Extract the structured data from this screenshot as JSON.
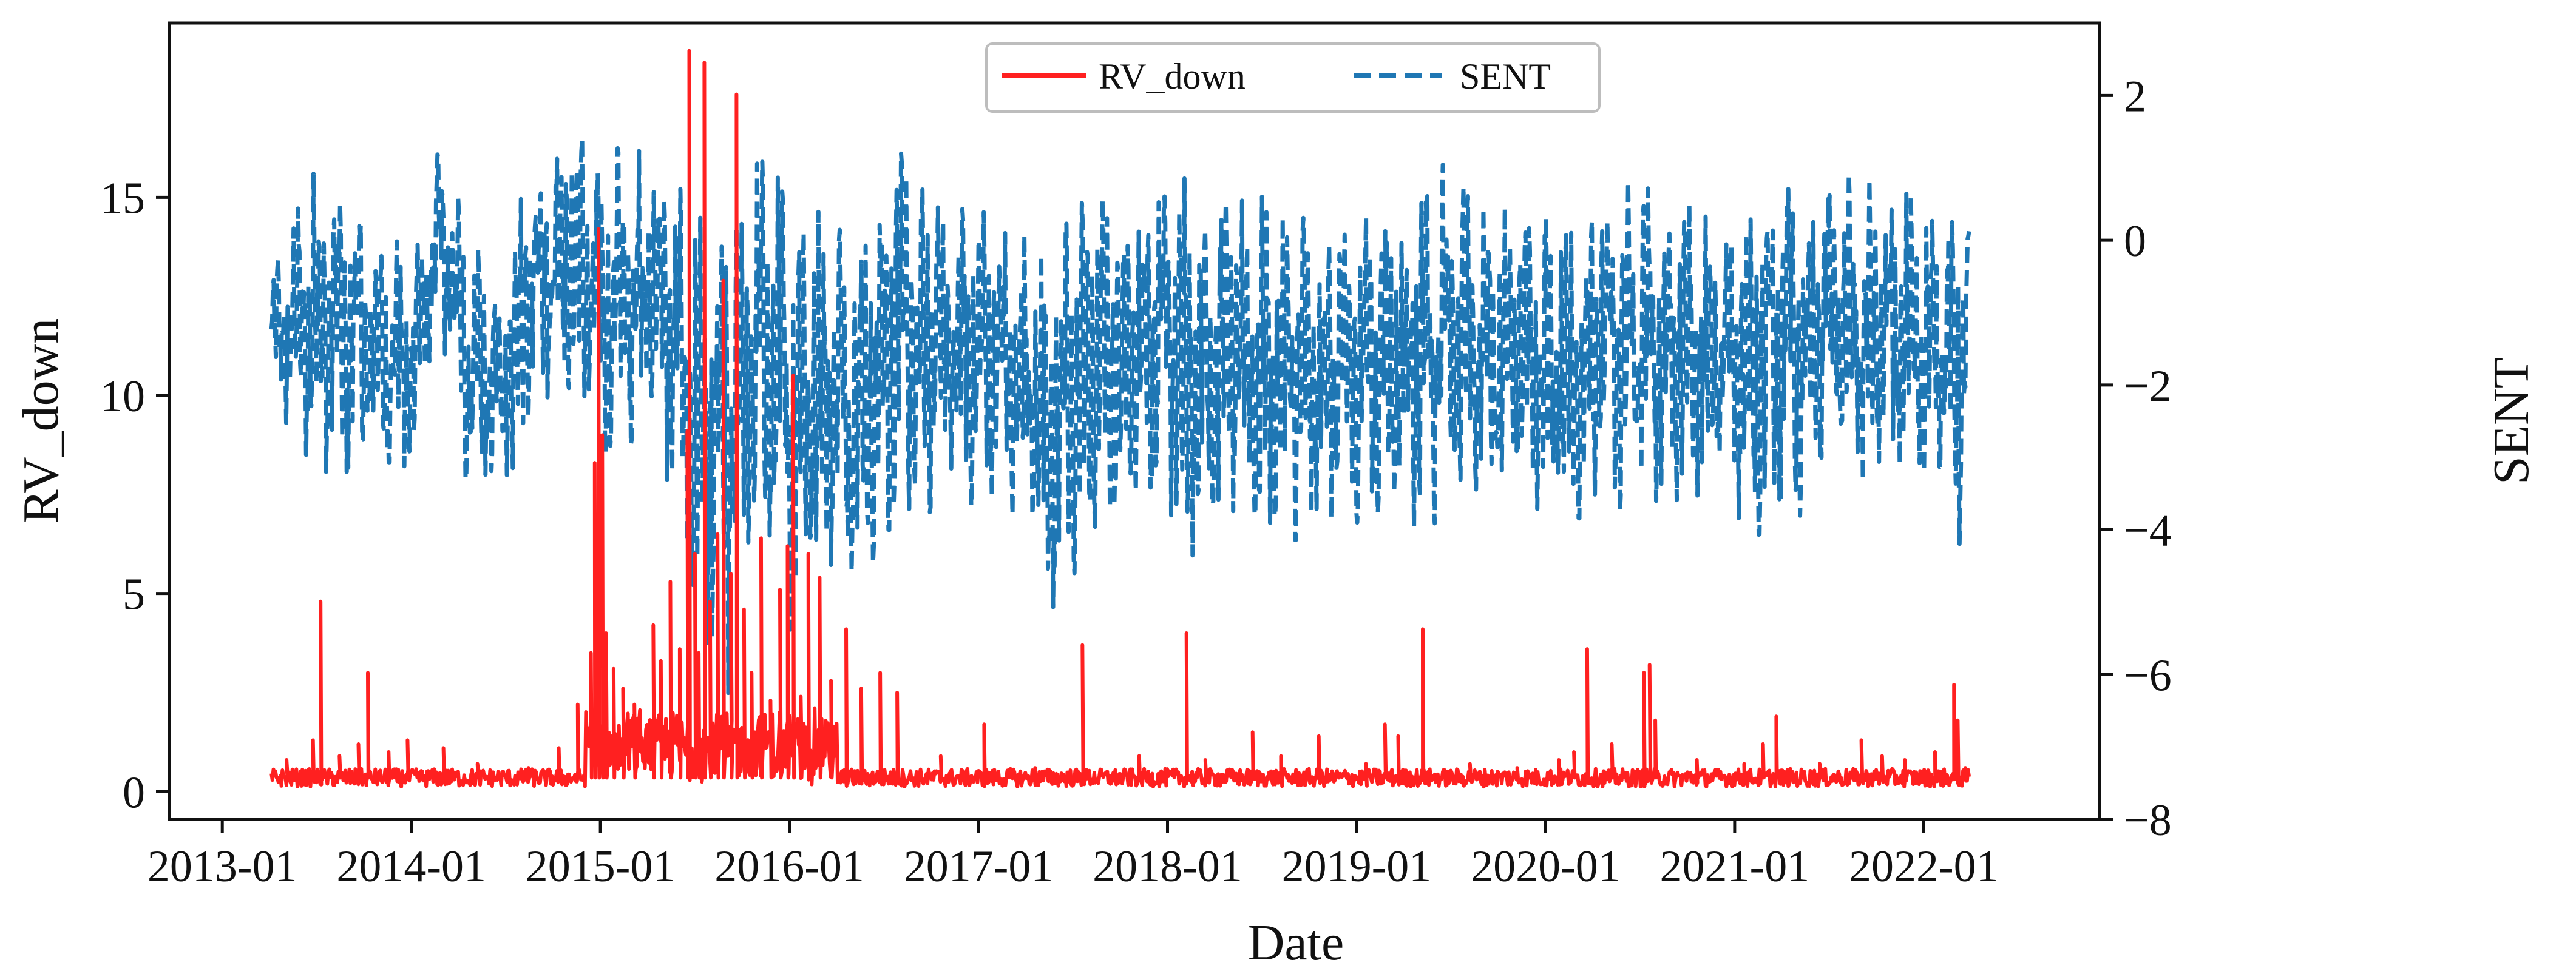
{
  "chart_data": {
    "type": "line",
    "title": "",
    "xlabel": "Date",
    "ylabel_left": "RV_down",
    "ylabel_right": "SENT",
    "x_ticks": [
      "2013-01",
      "2014-01",
      "2015-01",
      "2016-01",
      "2017-01",
      "2018-01",
      "2019-01",
      "2020-01",
      "2021-01",
      "2022-01"
    ],
    "x_range": [
      2012.72,
      2022.93
    ],
    "y_left_ticks": [
      "0",
      "5",
      "10",
      "15"
    ],
    "y_left_lim": [
      -0.7,
      19.4
    ],
    "y_right_ticks": [
      "−8",
      "−6",
      "−4",
      "−2",
      "0",
      "2"
    ],
    "y_right_lim": [
      -8.0,
      3.0
    ],
    "grid": false,
    "legend_position": "top-center",
    "data_start": 2013.26,
    "data_end": 2022.24,
    "series": [
      {
        "name": "RV_down",
        "axis": "left",
        "color": "#ff2020",
        "style": "solid",
        "baseline": 0.35,
        "spikes": [
          {
            "x": 2013.34,
            "y": 0.8
          },
          {
            "x": 2013.48,
            "y": 1.3
          },
          {
            "x": 2013.52,
            "y": 4.8
          },
          {
            "x": 2013.62,
            "y": 0.9
          },
          {
            "x": 2013.72,
            "y": 1.2
          },
          {
            "x": 2013.77,
            "y": 3.0
          },
          {
            "x": 2013.88,
            "y": 1.0
          },
          {
            "x": 2013.98,
            "y": 1.3
          },
          {
            "x": 2014.17,
            "y": 1.1
          },
          {
            "x": 2014.35,
            "y": 0.7
          },
          {
            "x": 2014.62,
            "y": 0.6
          },
          {
            "x": 2014.78,
            "y": 1.1
          },
          {
            "x": 2014.88,
            "y": 2.2
          },
          {
            "x": 2014.95,
            "y": 3.5
          },
          {
            "x": 2014.97,
            "y": 8.3
          },
          {
            "x": 2014.99,
            "y": 14.2
          },
          {
            "x": 2015.01,
            "y": 9.0
          },
          {
            "x": 2015.03,
            "y": 4.0
          },
          {
            "x": 2015.07,
            "y": 3.1
          },
          {
            "x": 2015.12,
            "y": 2.6
          },
          {
            "x": 2015.18,
            "y": 2.2
          },
          {
            "x": 2015.28,
            "y": 4.2
          },
          {
            "x": 2015.32,
            "y": 3.3
          },
          {
            "x": 2015.37,
            "y": 5.3
          },
          {
            "x": 2015.42,
            "y": 3.6
          },
          {
            "x": 2015.46,
            "y": 9.1
          },
          {
            "x": 2015.47,
            "y": 18.7
          },
          {
            "x": 2015.5,
            "y": 6.0
          },
          {
            "x": 2015.52,
            "y": 3.5
          },
          {
            "x": 2015.55,
            "y": 18.4
          },
          {
            "x": 2015.58,
            "y": 4.8
          },
          {
            "x": 2015.62,
            "y": 6.5
          },
          {
            "x": 2015.65,
            "y": 12.9
          },
          {
            "x": 2015.69,
            "y": 5.5
          },
          {
            "x": 2015.72,
            "y": 17.6
          },
          {
            "x": 2015.76,
            "y": 4.6
          },
          {
            "x": 2015.8,
            "y": 3.0
          },
          {
            "x": 2015.85,
            "y": 6.4
          },
          {
            "x": 2015.9,
            "y": 2.3
          },
          {
            "x": 2015.95,
            "y": 5.1
          },
          {
            "x": 2015.99,
            "y": 6.2
          },
          {
            "x": 2016.02,
            "y": 10.5
          },
          {
            "x": 2016.06,
            "y": 2.4
          },
          {
            "x": 2016.1,
            "y": 6.0
          },
          {
            "x": 2016.16,
            "y": 5.4
          },
          {
            "x": 2016.22,
            "y": 2.8
          },
          {
            "x": 2016.3,
            "y": 4.1
          },
          {
            "x": 2016.38,
            "y": 2.6
          },
          {
            "x": 2016.48,
            "y": 3.0
          },
          {
            "x": 2016.57,
            "y": 2.5
          },
          {
            "x": 2016.8,
            "y": 0.9
          },
          {
            "x": 2017.03,
            "y": 1.7
          },
          {
            "x": 2017.3,
            "y": 0.6
          },
          {
            "x": 2017.55,
            "y": 3.7
          },
          {
            "x": 2017.85,
            "y": 0.9
          },
          {
            "x": 2018.1,
            "y": 4.0
          },
          {
            "x": 2018.2,
            "y": 0.8
          },
          {
            "x": 2018.45,
            "y": 1.5
          },
          {
            "x": 2018.6,
            "y": 0.9
          },
          {
            "x": 2018.8,
            "y": 1.4
          },
          {
            "x": 2019.05,
            "y": 0.7
          },
          {
            "x": 2019.15,
            "y": 1.7
          },
          {
            "x": 2019.22,
            "y": 1.4
          },
          {
            "x": 2019.35,
            "y": 4.1
          },
          {
            "x": 2019.6,
            "y": 0.7
          },
          {
            "x": 2019.85,
            "y": 0.6
          },
          {
            "x": 2020.07,
            "y": 0.8
          },
          {
            "x": 2020.15,
            "y": 1.0
          },
          {
            "x": 2020.22,
            "y": 3.6
          },
          {
            "x": 2020.35,
            "y": 1.2
          },
          {
            "x": 2020.52,
            "y": 3.0
          },
          {
            "x": 2020.55,
            "y": 3.2
          },
          {
            "x": 2020.58,
            "y": 1.8
          },
          {
            "x": 2020.8,
            "y": 0.8
          },
          {
            "x": 2021.05,
            "y": 0.7
          },
          {
            "x": 2021.15,
            "y": 1.2
          },
          {
            "x": 2021.22,
            "y": 1.9
          },
          {
            "x": 2021.45,
            "y": 0.7
          },
          {
            "x": 2021.67,
            "y": 1.3
          },
          {
            "x": 2021.78,
            "y": 0.9
          },
          {
            "x": 2021.9,
            "y": 0.8
          },
          {
            "x": 2022.06,
            "y": 1.0
          },
          {
            "x": 2022.16,
            "y": 2.7
          },
          {
            "x": 2022.18,
            "y": 1.8
          },
          {
            "x": 2022.22,
            "y": 0.6
          }
        ]
      },
      {
        "name": "SENT",
        "axis": "right",
        "color": "#1f77b4",
        "style": "dashed",
        "envelope": [
          {
            "x": 2013.26,
            "lo": -2.2,
            "hi": -0.5
          },
          {
            "x": 2013.5,
            "lo": -3.2,
            "hi": 1.1
          },
          {
            "x": 2013.75,
            "lo": -3.2,
            "hi": 0.4
          },
          {
            "x": 2014.0,
            "lo": -3.4,
            "hi": -0.2
          },
          {
            "x": 2014.15,
            "lo": -1.2,
            "hi": 1.3
          },
          {
            "x": 2014.3,
            "lo": -3.5,
            "hi": 0.2
          },
          {
            "x": 2014.5,
            "lo": -3.9,
            "hi": -0.4
          },
          {
            "x": 2014.65,
            "lo": -2.5,
            "hi": 1.7
          },
          {
            "x": 2014.85,
            "lo": -2.0,
            "hi": 1.6
          },
          {
            "x": 2015.0,
            "lo": -3.2,
            "hi": 1.3
          },
          {
            "x": 2015.3,
            "lo": -2.5,
            "hi": 1.2
          },
          {
            "x": 2015.45,
            "lo": -4.8,
            "hi": 0.6
          },
          {
            "x": 2015.55,
            "lo": -6.9,
            "hi": 0.3
          },
          {
            "x": 2015.7,
            "lo": -6.2,
            "hi": 0.8
          },
          {
            "x": 2015.85,
            "lo": -4.0,
            "hi": 1.1
          },
          {
            "x": 2016.0,
            "lo": -5.4,
            "hi": 0.7
          },
          {
            "x": 2016.2,
            "lo": -4.5,
            "hi": 0.4
          },
          {
            "x": 2016.4,
            "lo": -4.8,
            "hi": 0.3
          },
          {
            "x": 2016.6,
            "lo": -3.7,
            "hi": 1.3
          },
          {
            "x": 2016.85,
            "lo": -3.8,
            "hi": 0.6
          },
          {
            "x": 2017.1,
            "lo": -3.5,
            "hi": 0.3
          },
          {
            "x": 2017.4,
            "lo": -5.2,
            "hi": 0.0
          },
          {
            "x": 2017.6,
            "lo": -4.2,
            "hi": 0.7
          },
          {
            "x": 2017.8,
            "lo": -3.4,
            "hi": 0.2
          },
          {
            "x": 2018.0,
            "lo": -3.8,
            "hi": 1.3
          },
          {
            "x": 2018.1,
            "lo": -4.5,
            "hi": 0.8
          },
          {
            "x": 2018.3,
            "lo": -3.6,
            "hi": 0.5
          },
          {
            "x": 2018.5,
            "lo": -4.2,
            "hi": 0.6
          },
          {
            "x": 2018.8,
            "lo": -4.1,
            "hi": 0.2
          },
          {
            "x": 2019.0,
            "lo": -3.9,
            "hi": 0.5
          },
          {
            "x": 2019.2,
            "lo": -3.9,
            "hi": 0.4
          },
          {
            "x": 2019.4,
            "lo": -4.0,
            "hi": 1.2
          },
          {
            "x": 2019.65,
            "lo": -3.4,
            "hi": 0.5
          },
          {
            "x": 2019.9,
            "lo": -3.6,
            "hi": 0.4
          },
          {
            "x": 2020.1,
            "lo": -4.0,
            "hi": 0.3
          },
          {
            "x": 2020.3,
            "lo": -3.6,
            "hi": 0.6
          },
          {
            "x": 2020.5,
            "lo": -3.9,
            "hi": 0.9
          },
          {
            "x": 2020.75,
            "lo": -3.5,
            "hi": 0.5
          },
          {
            "x": 2020.95,
            "lo": -3.6,
            "hi": 0.2
          },
          {
            "x": 2021.1,
            "lo": -4.1,
            "hi": 0.9
          },
          {
            "x": 2021.35,
            "lo": -3.8,
            "hi": 1.0
          },
          {
            "x": 2021.55,
            "lo": -3.3,
            "hi": 1.0
          },
          {
            "x": 2021.75,
            "lo": -3.5,
            "hi": 0.8
          },
          {
            "x": 2021.95,
            "lo": -3.4,
            "hi": 0.6
          },
          {
            "x": 2022.1,
            "lo": -3.1,
            "hi": 0.2
          },
          {
            "x": 2022.2,
            "lo": -4.4,
            "hi": 0.3
          },
          {
            "x": 2022.24,
            "lo": -1.0,
            "hi": 0.2
          }
        ]
      }
    ]
  }
}
